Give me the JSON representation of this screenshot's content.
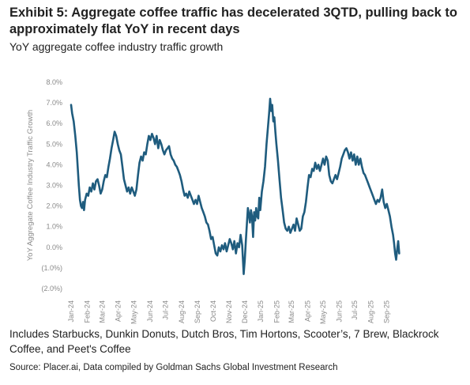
{
  "title": "Exhibit 5: Aggregate coffee traffic has decelerated 3QTD, pulling back to approximately flat YoY in recent days",
  "subtitle": "YoY aggregate coffee industry traffic growth",
  "note": "Includes Starbucks, Dunkin Donuts, Dutch Bros, Tim Hortons, Scooter’s, 7 Brew, Blackrock Coffee, and Peet's Coffee",
  "source": "Source: Placer.ai, Data compiled by Goldman Sachs Global Investment Research",
  "chart_data": {
    "type": "line",
    "ylabel": "YoY Aggregate Coffee Industry Traffic Growth",
    "ylim": [
      -2.0,
      8.0
    ],
    "xlim": [
      "2024-01-01",
      "2025-10-05"
    ],
    "yticks": [
      {
        "value": 8,
        "label": "8.0%"
      },
      {
        "value": 7,
        "label": "7.0%"
      },
      {
        "value": 6,
        "label": "6.0%"
      },
      {
        "value": 5,
        "label": "5.0%"
      },
      {
        "value": 4,
        "label": "4.0%"
      },
      {
        "value": 3,
        "label": "3.0%"
      },
      {
        "value": 2,
        "label": "2.0%"
      },
      {
        "value": 1,
        "label": "1.0%"
      },
      {
        "value": 0,
        "label": "0.0%"
      },
      {
        "value": -1,
        "label": "(1.0%)"
      },
      {
        "value": -2,
        "label": "(2.0%)"
      }
    ],
    "xticks": [
      {
        "date": "2024-01-01",
        "label": "Jan-24"
      },
      {
        "date": "2024-02-01",
        "label": "Feb-24"
      },
      {
        "date": "2024-03-01",
        "label": "Mar-24"
      },
      {
        "date": "2024-04-01",
        "label": "Apr-24"
      },
      {
        "date": "2024-05-01",
        "label": "May-24"
      },
      {
        "date": "2024-06-01",
        "label": "Jun-24"
      },
      {
        "date": "2024-07-01",
        "label": "Jul-24"
      },
      {
        "date": "2024-08-01",
        "label": "Aug-24"
      },
      {
        "date": "2024-09-01",
        "label": "Sep-24"
      },
      {
        "date": "2024-10-01",
        "label": "Oct-24"
      },
      {
        "date": "2024-11-01",
        "label": "Nov-24"
      },
      {
        "date": "2024-12-01",
        "label": "Dec-24"
      },
      {
        "date": "2025-01-01",
        "label": "Jan-25"
      },
      {
        "date": "2025-02-01",
        "label": "Feb-25"
      },
      {
        "date": "2025-03-01",
        "label": "Mar-25"
      },
      {
        "date": "2025-04-01",
        "label": "Apr-25"
      },
      {
        "date": "2025-05-01",
        "label": "May-25"
      },
      {
        "date": "2025-06-01",
        "label": "Jun-25"
      },
      {
        "date": "2025-07-01",
        "label": "Jul-25"
      },
      {
        "date": "2025-08-01",
        "label": "Aug-25"
      },
      {
        "date": "2025-09-01",
        "label": "Sep-25"
      }
    ],
    "grid": false,
    "color": "#1f5c7e",
    "series": [
      {
        "points": [
          [
            "2024-01-01",
            6.9
          ],
          [
            "2024-01-03",
            6.5
          ],
          [
            "2024-01-06",
            6.1
          ],
          [
            "2024-01-09",
            5.4
          ],
          [
            "2024-01-12",
            4.6
          ],
          [
            "2024-01-14",
            3.8
          ],
          [
            "2024-01-16",
            3.0
          ],
          [
            "2024-01-18",
            2.3
          ],
          [
            "2024-01-20",
            2.0
          ],
          [
            "2024-01-22",
            1.9
          ],
          [
            "2024-01-24",
            2.2
          ],
          [
            "2024-01-26",
            1.8
          ],
          [
            "2024-01-28",
            2.3
          ],
          [
            "2024-01-31",
            2.6
          ],
          [
            "2024-02-03",
            2.5
          ],
          [
            "2024-02-06",
            2.9
          ],
          [
            "2024-02-09",
            2.7
          ],
          [
            "2024-02-12",
            3.1
          ],
          [
            "2024-02-15",
            2.8
          ],
          [
            "2024-02-18",
            3.2
          ],
          [
            "2024-02-21",
            3.3
          ],
          [
            "2024-02-24",
            3.0
          ],
          [
            "2024-02-27",
            2.6
          ],
          [
            "2024-03-01",
            2.8
          ],
          [
            "2024-03-04",
            3.2
          ],
          [
            "2024-03-07",
            3.5
          ],
          [
            "2024-03-10",
            3.4
          ],
          [
            "2024-03-13",
            3.9
          ],
          [
            "2024-03-16",
            4.3
          ],
          [
            "2024-03-19",
            4.8
          ],
          [
            "2024-03-22",
            5.2
          ],
          [
            "2024-03-25",
            5.6
          ],
          [
            "2024-03-28",
            5.4
          ],
          [
            "2024-03-31",
            5.0
          ],
          [
            "2024-04-03",
            4.7
          ],
          [
            "2024-04-06",
            4.5
          ],
          [
            "2024-04-09",
            3.9
          ],
          [
            "2024-04-12",
            3.3
          ],
          [
            "2024-04-15",
            3.0
          ],
          [
            "2024-04-18",
            2.7
          ],
          [
            "2024-04-21",
            2.9
          ],
          [
            "2024-04-24",
            2.6
          ],
          [
            "2024-04-27",
            2.9
          ],
          [
            "2024-04-30",
            2.7
          ],
          [
            "2024-05-03",
            2.5
          ],
          [
            "2024-05-06",
            2.8
          ],
          [
            "2024-05-09",
            3.5
          ],
          [
            "2024-05-12",
            4.1
          ],
          [
            "2024-05-15",
            4.4
          ],
          [
            "2024-05-18",
            4.2
          ],
          [
            "2024-05-21",
            4.6
          ],
          [
            "2024-05-24",
            4.5
          ],
          [
            "2024-05-27",
            5.0
          ],
          [
            "2024-05-30",
            5.4
          ],
          [
            "2024-06-02",
            5.2
          ],
          [
            "2024-06-05",
            5.5
          ],
          [
            "2024-06-08",
            5.3
          ],
          [
            "2024-06-11",
            5.0
          ],
          [
            "2024-06-14",
            5.4
          ],
          [
            "2024-06-17",
            4.8
          ],
          [
            "2024-06-20",
            5.2
          ],
          [
            "2024-06-23",
            5.0
          ],
          [
            "2024-06-26",
            4.7
          ],
          [
            "2024-06-29",
            4.5
          ],
          [
            "2024-07-02",
            4.7
          ],
          [
            "2024-07-05",
            4.8
          ],
          [
            "2024-07-08",
            4.9
          ],
          [
            "2024-07-11",
            4.5
          ],
          [
            "2024-07-14",
            4.3
          ],
          [
            "2024-07-17",
            4.2
          ],
          [
            "2024-07-20",
            4.0
          ],
          [
            "2024-07-23",
            3.9
          ],
          [
            "2024-07-26",
            3.7
          ],
          [
            "2024-07-29",
            3.5
          ],
          [
            "2024-08-01",
            3.2
          ],
          [
            "2024-08-04",
            2.8
          ],
          [
            "2024-08-07",
            2.5
          ],
          [
            "2024-08-10",
            2.6
          ],
          [
            "2024-08-13",
            2.4
          ],
          [
            "2024-08-16",
            2.7
          ],
          [
            "2024-08-19",
            2.5
          ],
          [
            "2024-08-22",
            2.3
          ],
          [
            "2024-08-25",
            2.1
          ],
          [
            "2024-08-28",
            2.3
          ],
          [
            "2024-08-31",
            2.1
          ],
          [
            "2024-09-03",
            2.5
          ],
          [
            "2024-09-06",
            2.2
          ],
          [
            "2024-09-09",
            1.9
          ],
          [
            "2024-09-12",
            1.7
          ],
          [
            "2024-09-15",
            1.5
          ],
          [
            "2024-09-18",
            1.2
          ],
          [
            "2024-09-21",
            1.1
          ],
          [
            "2024-09-24",
            0.8
          ],
          [
            "2024-09-27",
            0.4
          ],
          [
            "2024-09-30",
            0.5
          ],
          [
            "2024-10-03",
            0.1
          ],
          [
            "2024-10-06",
            -0.3
          ],
          [
            "2024-10-09",
            -0.4
          ],
          [
            "2024-10-12",
            0.0
          ],
          [
            "2024-10-15",
            -0.2
          ],
          [
            "2024-10-18",
            0.1
          ],
          [
            "2024-10-21",
            -0.1
          ],
          [
            "2024-10-24",
            0.2
          ],
          [
            "2024-10-27",
            -0.2
          ],
          [
            "2024-10-30",
            0.1
          ],
          [
            "2024-11-02",
            0.4
          ],
          [
            "2024-11-05",
            0.2
          ],
          [
            "2024-11-08",
            -0.1
          ],
          [
            "2024-11-11",
            0.3
          ],
          [
            "2024-11-14",
            -0.3
          ],
          [
            "2024-11-17",
            0.2
          ],
          [
            "2024-11-20",
            0.0
          ],
          [
            "2024-11-23",
            0.6
          ],
          [
            "2024-11-26",
            0.1
          ],
          [
            "2024-11-29",
            -1.3
          ],
          [
            "2024-12-01",
            -0.6
          ],
          [
            "2024-12-03",
            0.3
          ],
          [
            "2024-12-05",
            1.1
          ],
          [
            "2024-12-07",
            1.9
          ],
          [
            "2024-12-09",
            1.6
          ],
          [
            "2024-12-11",
            1.2
          ],
          [
            "2024-12-13",
            1.8
          ],
          [
            "2024-12-15",
            1.5
          ],
          [
            "2024-12-17",
            0.5
          ],
          [
            "2024-12-19",
            1.7
          ],
          [
            "2024-12-21",
            1.3
          ],
          [
            "2024-12-23",
            1.9
          ],
          [
            "2024-12-25",
            1.5
          ],
          [
            "2024-12-27",
            1.4
          ],
          [
            "2024-12-29",
            2.4
          ],
          [
            "2024-12-31",
            1.8
          ],
          [
            "2025-01-03",
            2.7
          ],
          [
            "2025-01-06",
            3.2
          ],
          [
            "2025-01-09",
            3.9
          ],
          [
            "2025-01-12",
            5.0
          ],
          [
            "2025-01-15",
            5.9
          ],
          [
            "2025-01-17",
            6.5
          ],
          [
            "2025-01-19",
            7.2
          ],
          [
            "2025-01-21",
            6.6
          ],
          [
            "2025-01-23",
            6.9
          ],
          [
            "2025-01-25",
            6.1
          ],
          [
            "2025-01-27",
            6.3
          ],
          [
            "2025-01-29",
            5.6
          ],
          [
            "2025-01-31",
            5.0
          ],
          [
            "2025-02-03",
            4.2
          ],
          [
            "2025-02-06",
            3.3
          ],
          [
            "2025-02-09",
            2.4
          ],
          [
            "2025-02-12",
            1.8
          ],
          [
            "2025-02-15",
            1.2
          ],
          [
            "2025-02-18",
            0.9
          ],
          [
            "2025-02-21",
            0.8
          ],
          [
            "2025-02-24",
            1.0
          ],
          [
            "2025-02-27",
            0.7
          ],
          [
            "2025-03-02",
            0.9
          ],
          [
            "2025-03-05",
            1.1
          ],
          [
            "2025-03-08",
            0.8
          ],
          [
            "2025-03-11",
            1.4
          ],
          [
            "2025-03-14",
            1.1
          ],
          [
            "2025-03-17",
            0.8
          ],
          [
            "2025-03-20",
            0.9
          ],
          [
            "2025-03-23",
            1.5
          ],
          [
            "2025-03-26",
            1.7
          ],
          [
            "2025-03-29",
            2.2
          ],
          [
            "2025-04-01",
            2.9
          ],
          [
            "2025-04-04",
            3.5
          ],
          [
            "2025-04-07",
            3.4
          ],
          [
            "2025-04-10",
            3.8
          ],
          [
            "2025-04-13",
            3.7
          ],
          [
            "2025-04-16",
            4.1
          ],
          [
            "2025-04-19",
            3.8
          ],
          [
            "2025-04-22",
            4.0
          ],
          [
            "2025-04-25",
            3.7
          ],
          [
            "2025-04-28",
            4.0
          ],
          [
            "2025-05-01",
            4.3
          ],
          [
            "2025-05-04",
            4.0
          ],
          [
            "2025-05-07",
            4.4
          ],
          [
            "2025-05-10",
            4.2
          ],
          [
            "2025-05-13",
            3.5
          ],
          [
            "2025-05-16",
            3.2
          ],
          [
            "2025-05-19",
            3.1
          ],
          [
            "2025-05-22",
            3.3
          ],
          [
            "2025-05-25",
            3.5
          ],
          [
            "2025-05-28",
            3.3
          ],
          [
            "2025-05-31",
            3.6
          ],
          [
            "2025-06-03",
            3.9
          ],
          [
            "2025-06-06",
            4.3
          ],
          [
            "2025-06-09",
            4.5
          ],
          [
            "2025-06-12",
            4.7
          ],
          [
            "2025-06-15",
            4.8
          ],
          [
            "2025-06-18",
            4.6
          ],
          [
            "2025-06-21",
            4.3
          ],
          [
            "2025-06-24",
            4.6
          ],
          [
            "2025-06-27",
            4.2
          ],
          [
            "2025-06-30",
            4.5
          ],
          [
            "2025-07-03",
            4.0
          ],
          [
            "2025-07-06",
            4.4
          ],
          [
            "2025-07-09",
            4.0
          ],
          [
            "2025-07-12",
            4.3
          ],
          [
            "2025-07-15",
            3.9
          ],
          [
            "2025-07-18",
            3.6
          ],
          [
            "2025-07-21",
            3.5
          ],
          [
            "2025-07-24",
            3.3
          ],
          [
            "2025-07-27",
            3.1
          ],
          [
            "2025-07-30",
            2.9
          ],
          [
            "2025-08-02",
            2.7
          ],
          [
            "2025-08-05",
            2.5
          ],
          [
            "2025-08-08",
            2.3
          ],
          [
            "2025-08-11",
            2.1
          ],
          [
            "2025-08-14",
            2.3
          ],
          [
            "2025-08-17",
            2.2
          ],
          [
            "2025-08-20",
            2.4
          ],
          [
            "2025-08-23",
            2.8
          ],
          [
            "2025-08-26",
            2.2
          ],
          [
            "2025-08-29",
            1.9
          ],
          [
            "2025-09-01",
            2.1
          ],
          [
            "2025-09-04",
            1.8
          ],
          [
            "2025-09-07",
            1.5
          ],
          [
            "2025-09-10",
            1.0
          ],
          [
            "2025-09-13",
            0.6
          ],
          [
            "2025-09-15",
            0.2
          ],
          [
            "2025-09-17",
            -0.3
          ],
          [
            "2025-09-19",
            -0.6
          ],
          [
            "2025-09-21",
            -0.1
          ],
          [
            "2025-09-23",
            0.3
          ],
          [
            "2025-09-25",
            -0.3
          ]
        ]
      }
    ]
  }
}
